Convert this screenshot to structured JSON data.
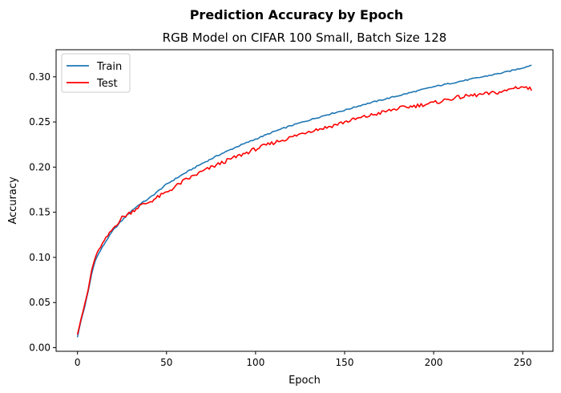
{
  "chart_data": {
    "type": "line",
    "title": "Prediction Accuracy by Epoch",
    "subtitle": "RGB Model on CIFAR 100 Small, Batch Size 128",
    "xlabel": "Epoch",
    "ylabel": "Accuracy",
    "xlim": [
      -12,
      267
    ],
    "ylim": [
      -0.004,
      0.33
    ],
    "x_ticks": [
      0,
      50,
      100,
      150,
      200,
      250
    ],
    "y_ticks": [
      0.0,
      0.05,
      0.1,
      0.15,
      0.2,
      0.25,
      0.3
    ],
    "x_tick_labels": [
      "0",
      "50",
      "100",
      "150",
      "200",
      "250"
    ],
    "y_tick_labels": [
      "0.00",
      "0.05",
      "0.10",
      "0.15",
      "0.20",
      "0.25",
      "0.30"
    ],
    "grid": false,
    "legend_position": "top-left",
    "series": [
      {
        "name": "Train",
        "color": "#1f77b4",
        "x": [
          0,
          2,
          4,
          6,
          8,
          10,
          13,
          16,
          20,
          25,
          30,
          35,
          40,
          50,
          60,
          70,
          80,
          90,
          100,
          110,
          120,
          130,
          140,
          150,
          160,
          170,
          180,
          190,
          200,
          210,
          220,
          230,
          240,
          250,
          255
        ],
        "y": [
          0.012,
          0.03,
          0.045,
          0.062,
          0.082,
          0.097,
          0.108,
          0.118,
          0.13,
          0.141,
          0.151,
          0.159,
          0.165,
          0.181,
          0.193,
          0.204,
          0.214,
          0.223,
          0.231,
          0.239,
          0.246,
          0.252,
          0.258,
          0.263,
          0.269,
          0.274,
          0.279,
          0.284,
          0.289,
          0.293,
          0.297,
          0.301,
          0.305,
          0.31,
          0.313
        ]
      },
      {
        "name": "Test",
        "color": "#ff0000",
        "x": [
          0,
          2,
          4,
          6,
          8,
          10,
          13,
          16,
          20,
          25,
          30,
          35,
          40,
          50,
          60,
          70,
          80,
          90,
          100,
          110,
          120,
          130,
          140,
          150,
          160,
          170,
          180,
          190,
          200,
          210,
          220,
          230,
          240,
          245,
          250,
          255
        ],
        "y": [
          0.015,
          0.032,
          0.047,
          0.064,
          0.086,
          0.1,
          0.112,
          0.121,
          0.132,
          0.144,
          0.15,
          0.157,
          0.161,
          0.172,
          0.185,
          0.195,
          0.204,
          0.212,
          0.22,
          0.227,
          0.233,
          0.24,
          0.244,
          0.25,
          0.255,
          0.26,
          0.265,
          0.268,
          0.271,
          0.276,
          0.279,
          0.281,
          0.284,
          0.288,
          0.289,
          0.286
        ]
      }
    ]
  }
}
